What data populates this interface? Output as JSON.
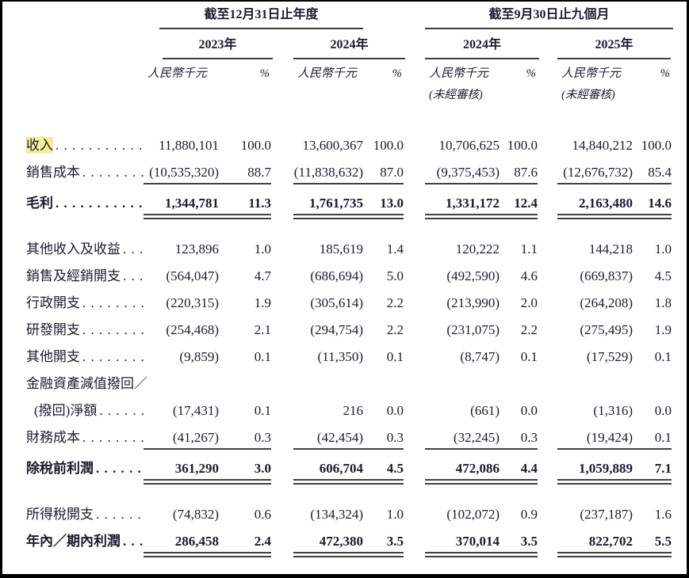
{
  "page": {
    "background": "#ffffff",
    "border_color": "#000000",
    "text_color": "#1b1b2f",
    "highlight_color": "#f3ef9b"
  },
  "table": {
    "column_groups": [
      {
        "title": "截至12月31日止年度",
        "years": [
          {
            "label": "2023年",
            "unit": "人民幣千元",
            "pct": "%",
            "note": ""
          },
          {
            "label": "2024年",
            "unit": "人民幣千元",
            "pct": "%",
            "note": ""
          }
        ]
      },
      {
        "title": "截至9月30日止九個月",
        "years": [
          {
            "label": "2024年",
            "unit": "人民幣千元",
            "pct": "%",
            "note": "(未經審核)"
          },
          {
            "label": "2025年",
            "unit": "人民幣千元",
            "pct": "%",
            "note": "(未經審核)"
          }
        ]
      }
    ],
    "rows": [
      {
        "label": "收入",
        "highlight": true,
        "leader": true,
        "values": [
          "11,880,101",
          "100.0",
          "13,600,367",
          "100.0",
          "10,706,625",
          "100.0",
          "14,840,212",
          "100.0"
        ]
      },
      {
        "label": "銷售成本",
        "leader": true,
        "rule": "single",
        "values": [
          "(10,535,320)",
          "88.7",
          "(11,838,632)",
          "87.0",
          "(9,375,453)",
          "87.6",
          "(12,676,732)",
          "85.4"
        ]
      },
      {
        "label": "毛利",
        "bold": true,
        "leader": true,
        "rule": "double",
        "values": [
          "1,344,781",
          "11.3",
          "1,761,735",
          "13.0",
          "1,331,172",
          "12.4",
          "2,163,480",
          "14.6"
        ]
      },
      {
        "label": "其他收入及收益",
        "leader": true,
        "section_gap": true,
        "values": [
          "123,896",
          "1.0",
          "185,619",
          "1.4",
          "120,222",
          "1.1",
          "144,218",
          "1.0"
        ]
      },
      {
        "label": "銷售及經銷開支",
        "leader": true,
        "values": [
          "(564,047)",
          "4.7",
          "(686,694)",
          "5.0",
          "(492,590)",
          "4.6",
          "(669,837)",
          "4.5"
        ]
      },
      {
        "label": "行政開支",
        "leader": true,
        "values": [
          "(220,315)",
          "1.9",
          "(305,614)",
          "2.2",
          "(213,990)",
          "2.0",
          "(264,208)",
          "1.8"
        ]
      },
      {
        "label": "研發開支",
        "leader": true,
        "values": [
          "(254,468)",
          "2.1",
          "(294,754)",
          "2.2",
          "(231,075)",
          "2.2",
          "(275,495)",
          "1.9"
        ]
      },
      {
        "label": "其他開支",
        "leader": true,
        "values": [
          "(9,859)",
          "0.1",
          "(11,350)",
          "0.1",
          "(8,747)",
          "0.1",
          "(17,529)",
          "0.1"
        ]
      },
      {
        "label": "金融資產減值撥回／",
        "leader": false,
        "values": []
      },
      {
        "label": "(撥回)淨額",
        "indent": true,
        "leader": true,
        "values": [
          "(17,431)",
          "0.1",
          "216",
          "0.0",
          "(661)",
          "0.0",
          "(1,316)",
          "0.0"
        ]
      },
      {
        "label": "財務成本",
        "leader": true,
        "rule": "single",
        "values": [
          "(41,267)",
          "0.3",
          "(42,454)",
          "0.3",
          "(32,245)",
          "0.3",
          "(19,424)",
          "0.1"
        ]
      },
      {
        "label": "除稅前利潤",
        "bold": true,
        "leader": true,
        "rule": "double",
        "values": [
          "361,290",
          "3.0",
          "606,704",
          "4.5",
          "472,086",
          "4.4",
          "1,059,889",
          "7.1"
        ]
      },
      {
        "label": "所得稅開支",
        "leader": true,
        "section_gap": true,
        "values": [
          "(74,832)",
          "0.6",
          "(134,324)",
          "1.0",
          "(102,072)",
          "0.9",
          "(237,187)",
          "1.6"
        ]
      },
      {
        "label": "年內／期內利潤",
        "bold": true,
        "leader": true,
        "rule": "double",
        "values": [
          "286,458",
          "2.4",
          "472,380",
          "3.5",
          "370,014",
          "3.5",
          "822,702",
          "5.5"
        ]
      }
    ]
  }
}
